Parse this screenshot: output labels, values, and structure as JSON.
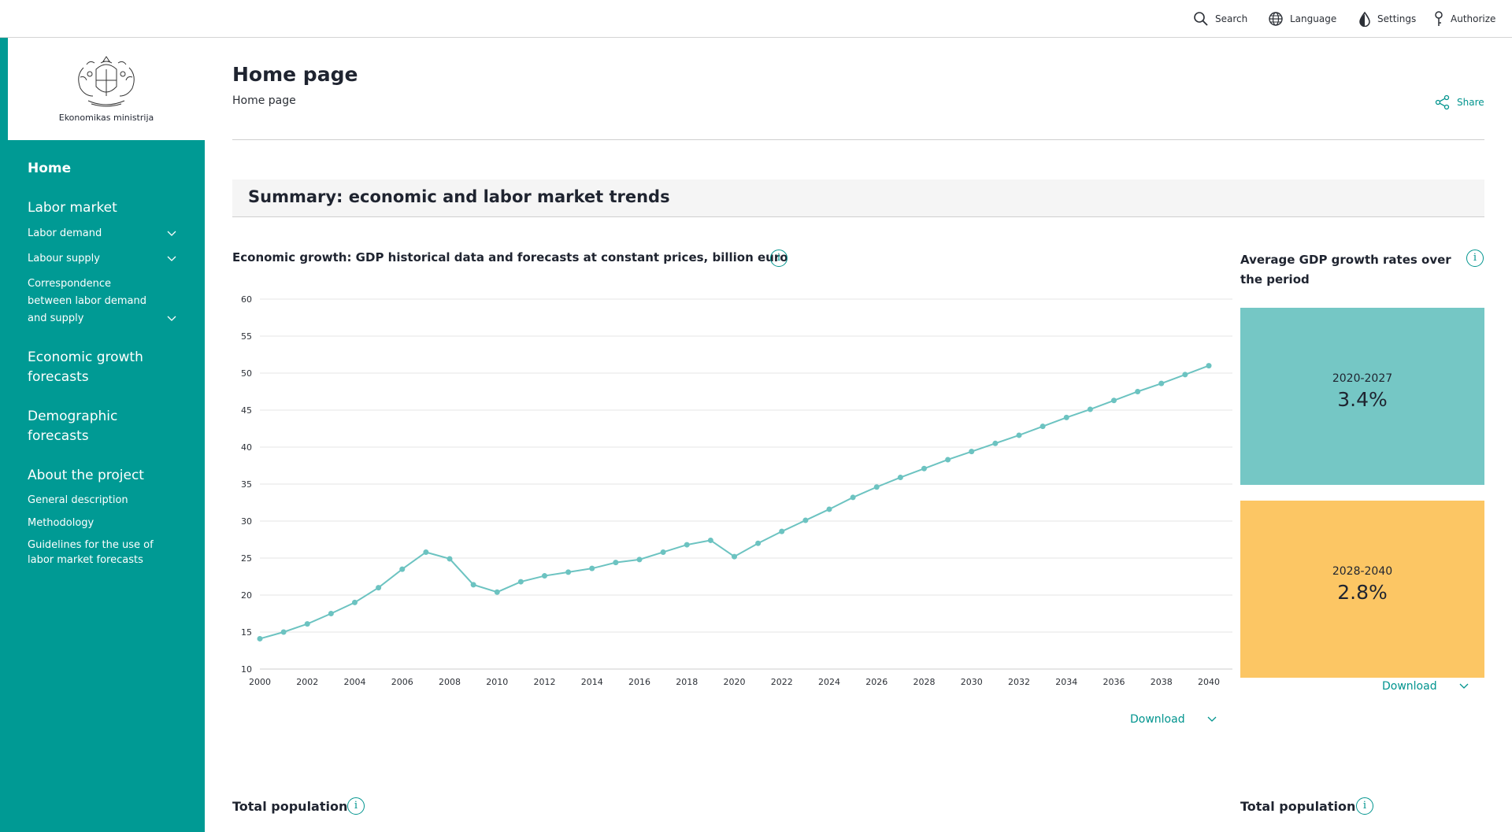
{
  "topnav": {
    "search": "Search",
    "language": "Language",
    "settings": "Settings",
    "authorize": "Authorize"
  },
  "sidebar": {
    "ministry": "Ekonomikas ministrija",
    "home": "Home",
    "labor_market": "Labor market",
    "labor_demand": "Labor demand",
    "labour_supply": "Labour supply",
    "correspondence": [
      "Correspondence",
      "between labor demand",
      "and supply"
    ],
    "economic_growth": [
      "Economic growth",
      "forecasts"
    ],
    "demographic": [
      "Demographic",
      "forecasts"
    ],
    "about": "About the project",
    "general_description": "General description",
    "methodology": "Methodology",
    "guidelines": [
      "Guidelines for the use of",
      "labor market forecasts"
    ]
  },
  "header": {
    "title": "Home page",
    "breadcrumb": "Home page",
    "share": "Share"
  },
  "summary": {
    "title": "Summary: economic and labor market trends"
  },
  "gdp_chart": {
    "title": "Economic growth: GDP historical data and forecasts at constant prices, billion euro",
    "download": "Download"
  },
  "growth_rates": {
    "title": "Average GDP growth rates over the period",
    "boxes": [
      {
        "period": "2020-2027",
        "value": "3.4%",
        "color": "#75c7c5"
      },
      {
        "period": "2028-2040",
        "value": "2.8%",
        "color": "#fcc664"
      }
    ],
    "download": "Download"
  },
  "bottom": {
    "left_title": "Total population",
    "right_title": "Total population"
  },
  "colors": {
    "accent": "#009a94",
    "line": "#6cc3c1"
  },
  "chart_data": {
    "type": "line",
    "x": [
      2000,
      2001,
      2002,
      2003,
      2004,
      2005,
      2006,
      2007,
      2008,
      2009,
      2010,
      2011,
      2012,
      2013,
      2014,
      2015,
      2016,
      2017,
      2018,
      2019,
      2020,
      2021,
      2022,
      2023,
      2024,
      2025,
      2026,
      2027,
      2028,
      2029,
      2030,
      2031,
      2032,
      2033,
      2034,
      2035,
      2036,
      2037,
      2038,
      2039,
      2040
    ],
    "series": [
      {
        "values": [
          14.1,
          15.0,
          16.1,
          17.5,
          19.0,
          21.0,
          23.5,
          25.8,
          24.9,
          21.4,
          20.4,
          21.8,
          22.6,
          23.1,
          23.6,
          24.4,
          24.8,
          25.8,
          26.8,
          27.4,
          25.2,
          27.0,
          28.6,
          30.1,
          31.6,
          33.2,
          34.6,
          35.9,
          37.1,
          38.3,
          39.4,
          40.5,
          41.6,
          42.8,
          44.0,
          45.1,
          46.3,
          47.5,
          48.6,
          49.8,
          51.0
        ]
      }
    ],
    "xticks": [
      "2000",
      "2002",
      "2004",
      "2006",
      "2008",
      "2010",
      "2012",
      "2014",
      "2016",
      "2018",
      "2020",
      "2022",
      "2024",
      "2026",
      "2028",
      "2030",
      "2032",
      "2034",
      "2036",
      "2038",
      "2040"
    ],
    "yticks": [
      "10",
      "15",
      "20",
      "25",
      "30",
      "35",
      "40",
      "45",
      "50",
      "55",
      "60"
    ],
    "ylim": [
      10,
      60
    ],
    "xlim": [
      2000,
      2040
    ],
    "grid": true
  }
}
